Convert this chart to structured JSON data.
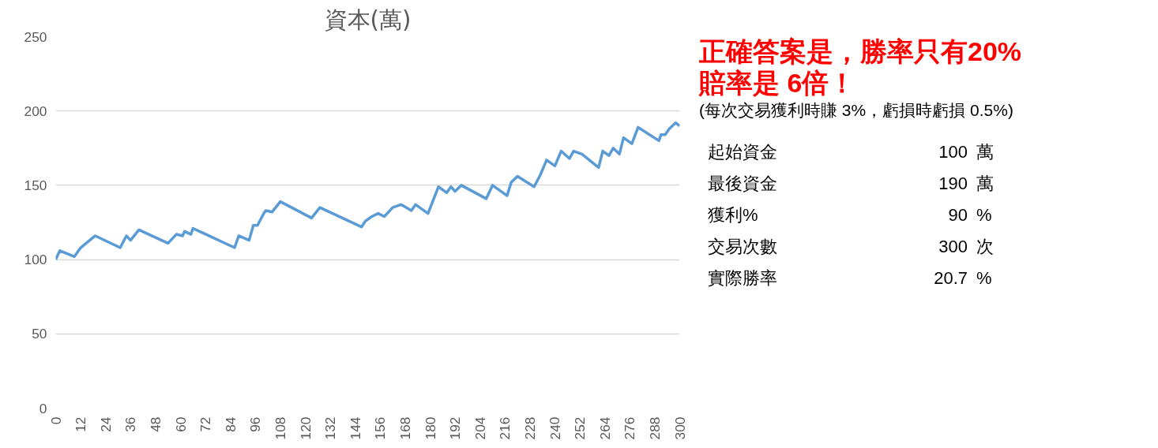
{
  "chart_data": {
    "type": "line",
    "title": "資本(萬)",
    "x": [
      0,
      2,
      9,
      12,
      19,
      31,
      34,
      36,
      40,
      54,
      58,
      61,
      62,
      65,
      66,
      86,
      88,
      93,
      95,
      97,
      100,
      101,
      104,
      108,
      123,
      127,
      147,
      149,
      152,
      155,
      158,
      162,
      166,
      171,
      173,
      179,
      184,
      188,
      190,
      192,
      195,
      207,
      210,
      217,
      219,
      222,
      230,
      233,
      236,
      240,
      243,
      247,
      249,
      253,
      261,
      263,
      266,
      268,
      271,
      273,
      277,
      280,
      290,
      291,
      293,
      295,
      298,
      300
    ],
    "series": [
      {
        "color": "#5b9bd5",
        "values": [
          100,
          106,
          102,
          108,
          116,
          108,
          116,
          113,
          120,
          111,
          117,
          116,
          119,
          117,
          121,
          108,
          116,
          113,
          123,
          123,
          131,
          133,
          132,
          139,
          128,
          135,
          122,
          126,
          129,
          131,
          129,
          135,
          137,
          133,
          137,
          131,
          149,
          145,
          149,
          146,
          150,
          141,
          150,
          143,
          152,
          156,
          149,
          157,
          167,
          163,
          173,
          168,
          173,
          171,
          162,
          173,
          170,
          175,
          171,
          182,
          178,
          189,
          180,
          184,
          184,
          188,
          192,
          190
        ]
      }
    ],
    "xlim": [
      0,
      300
    ],
    "ylim": [
      0,
      250
    ],
    "xticks": [
      0,
      12,
      24,
      36,
      48,
      60,
      72,
      84,
      96,
      108,
      120,
      132,
      144,
      156,
      168,
      180,
      192,
      204,
      216,
      228,
      240,
      252,
      264,
      276,
      288,
      300
    ],
    "yticks": [
      0,
      50,
      100,
      150,
      200,
      250
    ],
    "grid": "y",
    "marker": "none",
    "line_style": "solid",
    "annotations": [
      "正確答案是，勝率只有20%",
      "賠率是 6倍！",
      "(每次交易獲利時賺 3%，虧損時虧損 0.5%)",
      "起始資金",
      "100",
      "萬",
      "最後資金",
      "190",
      "萬",
      "獲利%",
      "90",
      "%",
      "交易次數",
      "300",
      "次",
      "實際勝率",
      "20.7",
      "%"
    ]
  }
}
